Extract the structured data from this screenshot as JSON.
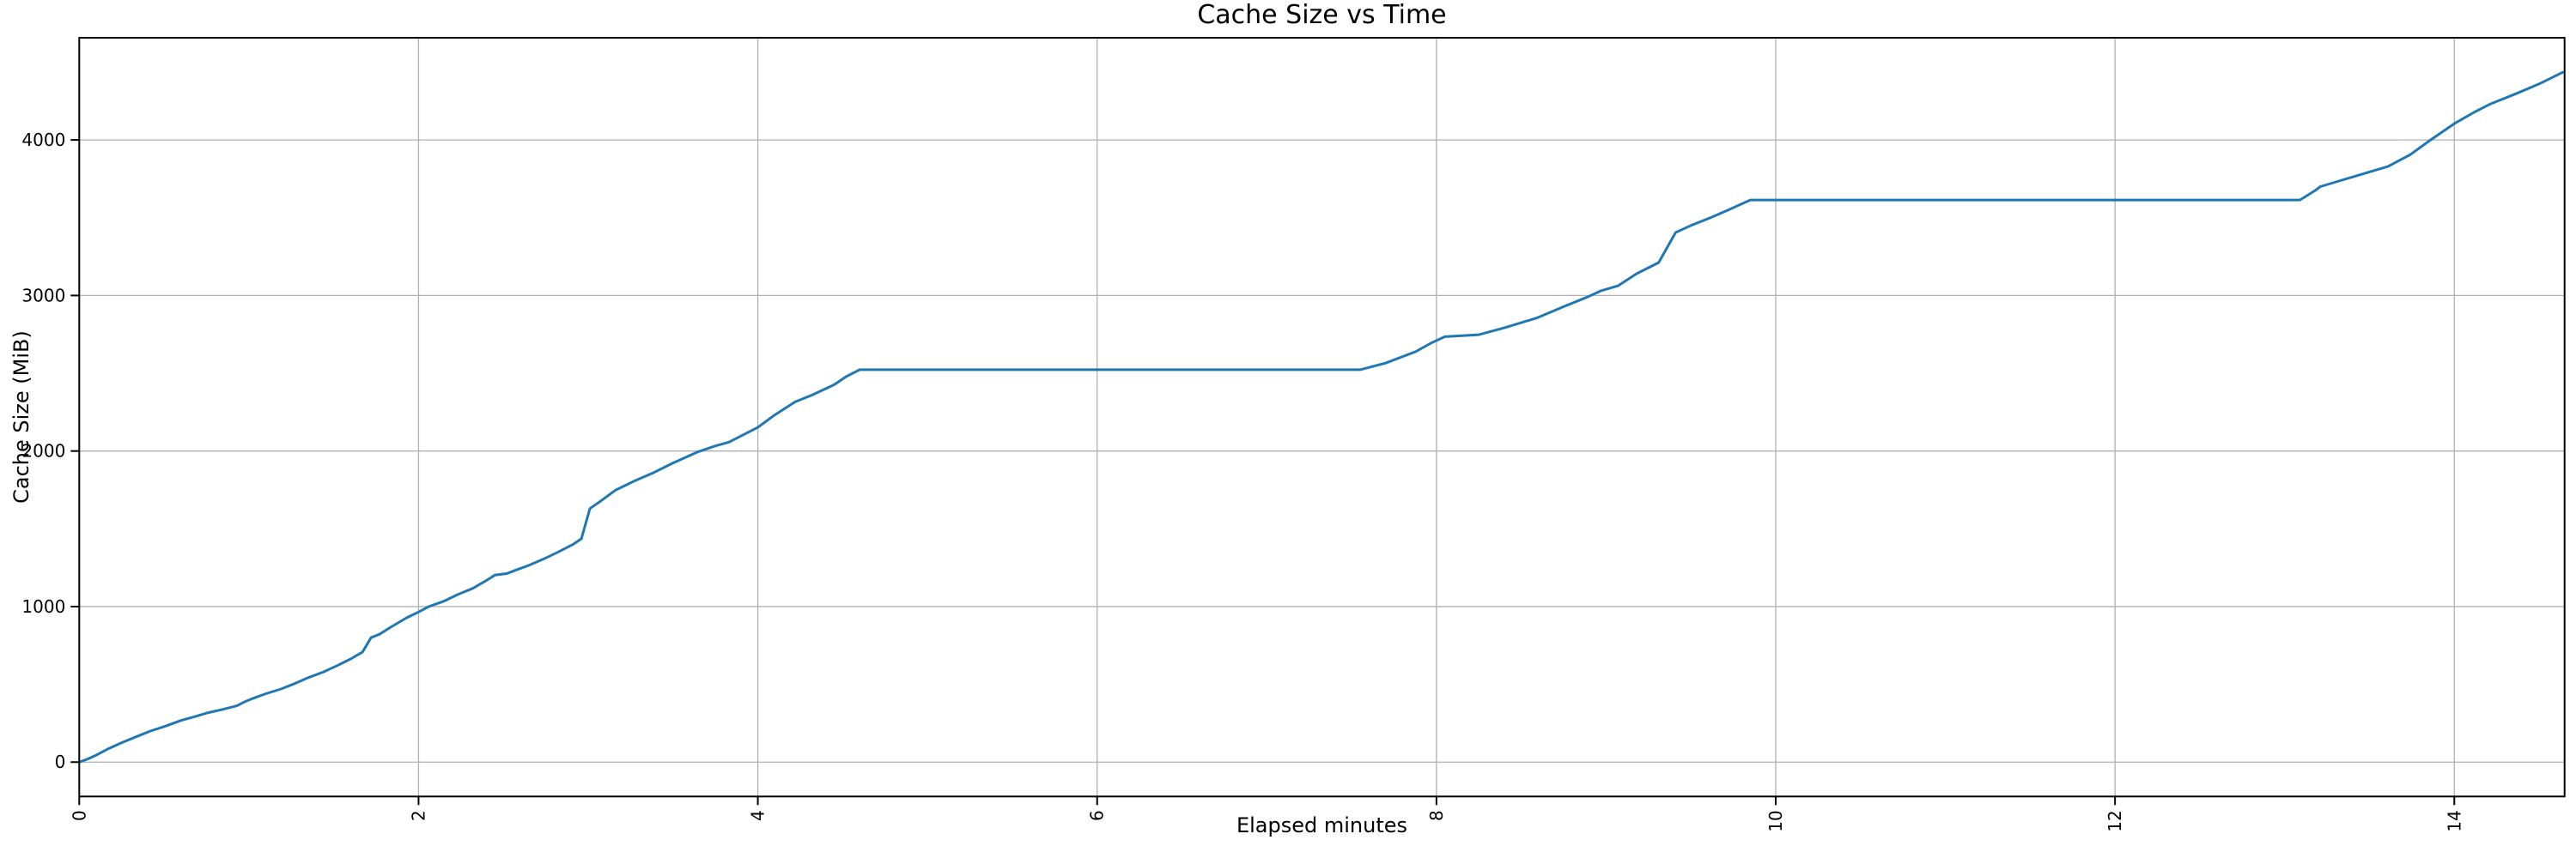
{
  "chart_data": {
    "type": "line",
    "title": "Cache Size vs Time",
    "xlabel": "Elapsed minutes",
    "ylabel": "Cache Size (MiB)",
    "xlim": [
      0,
      14.65
    ],
    "ylim": [
      -221,
      4657
    ],
    "xticks": [
      0,
      2,
      4,
      6,
      8,
      10,
      12,
      14
    ],
    "yticks": [
      0,
      1000,
      2000,
      3000,
      4000
    ],
    "grid": true,
    "x_tick_rotation_deg": 90,
    "colors": {
      "line": "#1f77b4",
      "grid": "#b0b0b0",
      "spine": "#000000",
      "background": "#ffffff",
      "text": "#000000"
    },
    "series": [
      {
        "name": "cache_size_mib",
        "points": [
          [
            0.0,
            0
          ],
          [
            0.05,
            20
          ],
          [
            0.1,
            45
          ],
          [
            0.17,
            85
          ],
          [
            0.25,
            125
          ],
          [
            0.34,
            165
          ],
          [
            0.42,
            200
          ],
          [
            0.51,
            232
          ],
          [
            0.6,
            268
          ],
          [
            0.68,
            292
          ],
          [
            0.76,
            318
          ],
          [
            0.85,
            340
          ],
          [
            0.93,
            362
          ],
          [
            0.97,
            385
          ],
          [
            1.02,
            408
          ],
          [
            1.1,
            440
          ],
          [
            1.19,
            470
          ],
          [
            1.27,
            505
          ],
          [
            1.35,
            543
          ],
          [
            1.44,
            580
          ],
          [
            1.52,
            620
          ],
          [
            1.6,
            663
          ],
          [
            1.67,
            708
          ],
          [
            1.72,
            800
          ],
          [
            1.77,
            822
          ],
          [
            1.84,
            870
          ],
          [
            1.93,
            928
          ],
          [
            2.0,
            965
          ],
          [
            2.06,
            1000
          ],
          [
            2.15,
            1035
          ],
          [
            2.23,
            1077
          ],
          [
            2.32,
            1117
          ],
          [
            2.4,
            1168
          ],
          [
            2.45,
            1202
          ],
          [
            2.52,
            1212
          ],
          [
            2.57,
            1233
          ],
          [
            2.65,
            1265
          ],
          [
            2.74,
            1307
          ],
          [
            2.82,
            1349
          ],
          [
            2.91,
            1399
          ],
          [
            2.96,
            1436
          ],
          [
            3.01,
            1630
          ],
          [
            3.06,
            1668
          ],
          [
            3.16,
            1748
          ],
          [
            3.27,
            1806
          ],
          [
            3.38,
            1858
          ],
          [
            3.5,
            1923
          ],
          [
            3.65,
            1996
          ],
          [
            3.75,
            2033
          ],
          [
            3.83,
            2057
          ],
          [
            3.91,
            2102
          ],
          [
            4.0,
            2152
          ],
          [
            4.1,
            2232
          ],
          [
            4.22,
            2316
          ],
          [
            4.32,
            2360
          ],
          [
            4.45,
            2426
          ],
          [
            4.52,
            2478
          ],
          [
            4.6,
            2523
          ],
          [
            7.55,
            2523
          ],
          [
            7.7,
            2565
          ],
          [
            7.88,
            2640
          ],
          [
            7.97,
            2695
          ],
          [
            8.05,
            2735
          ],
          [
            8.25,
            2748
          ],
          [
            8.4,
            2792
          ],
          [
            8.59,
            2855
          ],
          [
            8.75,
            2928
          ],
          [
            8.89,
            2990
          ],
          [
            8.97,
            3030
          ],
          [
            9.07,
            3062
          ],
          [
            9.18,
            3140
          ],
          [
            9.31,
            3212
          ],
          [
            9.41,
            3405
          ],
          [
            9.5,
            3450
          ],
          [
            9.62,
            3502
          ],
          [
            9.72,
            3550
          ],
          [
            9.85,
            3614
          ],
          [
            13.09,
            3614
          ],
          [
            13.18,
            3675
          ],
          [
            13.21,
            3700
          ],
          [
            13.32,
            3736
          ],
          [
            13.44,
            3775
          ],
          [
            13.61,
            3830
          ],
          [
            13.74,
            3905
          ],
          [
            13.86,
            4000
          ],
          [
            14.0,
            4105
          ],
          [
            14.12,
            4180
          ],
          [
            14.21,
            4230
          ],
          [
            14.37,
            4300
          ],
          [
            14.5,
            4360
          ],
          [
            14.64,
            4435
          ]
        ]
      }
    ]
  }
}
